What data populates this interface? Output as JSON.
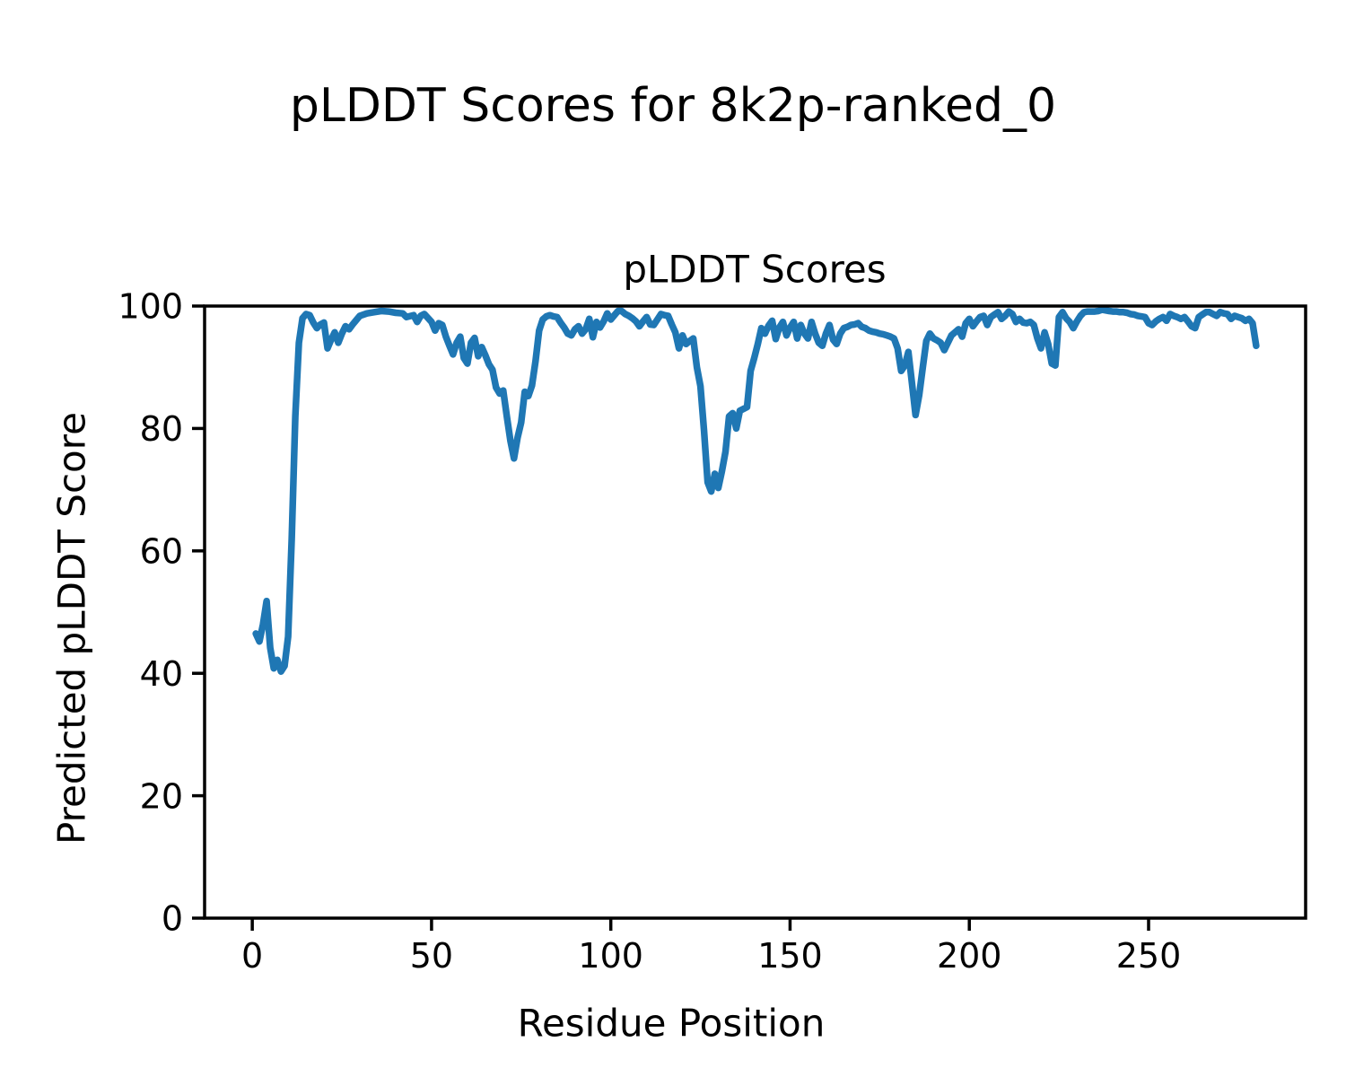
{
  "figure": {
    "suptitle": "pLDDT Scores for 8k2p-ranked_0",
    "axes_title": "pLDDT Scores",
    "xlabel": "Residue Position",
    "ylabel": "Predicted pLDDT Score",
    "background": "#ffffff",
    "text_color": "#000000"
  },
  "chart_data": {
    "type": "line",
    "title": "pLDDT Scores",
    "suptitle": "pLDDT Scores for 8k2p-ranked_0",
    "xlabel": "Residue Position",
    "ylabel": "Predicted pLDDT Score",
    "xlim": [
      -13.3,
      293.8
    ],
    "ylim": [
      0,
      100
    ],
    "x_ticks": [
      0,
      50,
      100,
      150,
      200,
      250
    ],
    "y_ticks": [
      0,
      20,
      40,
      60,
      80,
      100
    ],
    "grid": false,
    "legend": "none",
    "line_color": "#1f77b4",
    "line_width": 7.5,
    "axis_color": "#000000",
    "series": [
      {
        "name": "pLDDT",
        "points": [
          [
            1,
            46.5
          ],
          [
            2,
            45.2
          ],
          [
            3,
            48.0
          ],
          [
            4,
            51.8
          ],
          [
            5,
            44.2
          ],
          [
            6,
            40.8
          ],
          [
            7,
            42.2
          ],
          [
            8,
            40.3
          ],
          [
            9,
            41.2
          ],
          [
            10,
            46.0
          ],
          [
            11,
            62.0
          ],
          [
            12,
            82.0
          ],
          [
            13,
            94.0
          ],
          [
            14,
            98.0
          ],
          [
            15,
            98.7
          ],
          [
            16,
            98.5
          ],
          [
            17,
            97.3
          ],
          [
            18,
            96.4
          ],
          [
            19,
            97.0
          ],
          [
            20,
            97.3
          ],
          [
            21,
            93.1
          ],
          [
            22,
            94.5
          ],
          [
            23,
            95.7
          ],
          [
            24,
            94.0
          ],
          [
            25,
            95.5
          ],
          [
            26,
            96.7
          ],
          [
            27,
            96.2
          ],
          [
            28,
            97.0
          ],
          [
            29,
            97.7
          ],
          [
            30,
            98.4
          ],
          [
            32,
            98.8
          ],
          [
            34,
            99.0
          ],
          [
            36,
            99.2
          ],
          [
            38,
            99.1
          ],
          [
            40,
            98.9
          ],
          [
            42,
            98.8
          ],
          [
            43,
            98.2
          ],
          [
            45,
            98.5
          ],
          [
            46,
            97.4
          ],
          [
            47,
            98.4
          ],
          [
            48,
            98.7
          ],
          [
            50,
            97.4
          ],
          [
            51,
            96.0
          ],
          [
            52,
            97.2
          ],
          [
            53,
            96.9
          ],
          [
            54,
            95.0
          ],
          [
            55,
            93.5
          ],
          [
            56,
            92.1
          ],
          [
            57,
            94.0
          ],
          [
            58,
            95.0
          ],
          [
            59,
            91.5
          ],
          [
            60,
            90.6
          ],
          [
            61,
            94.0
          ],
          [
            62,
            94.8
          ],
          [
            63,
            91.8
          ],
          [
            64,
            93.3
          ],
          [
            65,
            92.0
          ],
          [
            66,
            90.5
          ],
          [
            67,
            89.6
          ],
          [
            68,
            86.7
          ],
          [
            69,
            85.7
          ],
          [
            70,
            86.2
          ],
          [
            71,
            82.0
          ],
          [
            72,
            78.0
          ],
          [
            73,
            75.1
          ],
          [
            74,
            78.5
          ],
          [
            75,
            81.0
          ],
          [
            76,
            86.0
          ],
          [
            77,
            85.3
          ],
          [
            78,
            87.0
          ],
          [
            79,
            91.0
          ],
          [
            80,
            96.0
          ],
          [
            81,
            97.8
          ],
          [
            82,
            98.3
          ],
          [
            83,
            98.5
          ],
          [
            84,
            98.3
          ],
          [
            85,
            98.2
          ],
          [
            86,
            97.3
          ],
          [
            87,
            96.5
          ],
          [
            88,
            95.5
          ],
          [
            89,
            95.2
          ],
          [
            90,
            96.2
          ],
          [
            91,
            96.7
          ],
          [
            92,
            95.5
          ],
          [
            93,
            96.2
          ],
          [
            94,
            97.9
          ],
          [
            95,
            94.9
          ],
          [
            96,
            97.4
          ],
          [
            97,
            96.5
          ],
          [
            98,
            97.5
          ],
          [
            99,
            98.8
          ],
          [
            100,
            97.8
          ],
          [
            101,
            98.5
          ],
          [
            102,
            99.2
          ],
          [
            103,
            99.2
          ],
          [
            104,
            98.7
          ],
          [
            105,
            98.4
          ],
          [
            106,
            98.0
          ],
          [
            107,
            97.5
          ],
          [
            108,
            96.7
          ],
          [
            109,
            97.5
          ],
          [
            110,
            98.2
          ],
          [
            111,
            97.0
          ],
          [
            112,
            96.9
          ],
          [
            113,
            97.8
          ],
          [
            114,
            98.7
          ],
          [
            115,
            98.5
          ],
          [
            116,
            98.4
          ],
          [
            117,
            97.0
          ],
          [
            118,
            95.7
          ],
          [
            119,
            93.1
          ],
          [
            120,
            95.2
          ],
          [
            121,
            93.8
          ],
          [
            122,
            94.3
          ],
          [
            123,
            94.7
          ],
          [
            124,
            90.0
          ],
          [
            125,
            86.9
          ],
          [
            126,
            79.6
          ],
          [
            127,
            71.2
          ],
          [
            128,
            69.7
          ],
          [
            129,
            72.6
          ],
          [
            130,
            70.3
          ],
          [
            131,
            73.0
          ],
          [
            132,
            76.2
          ],
          [
            133,
            82.0
          ],
          [
            134,
            82.5
          ],
          [
            135,
            80.0
          ],
          [
            136,
            82.9
          ],
          [
            137,
            83.2
          ],
          [
            138,
            83.5
          ],
          [
            139,
            89.4
          ],
          [
            140,
            91.5
          ],
          [
            141,
            93.8
          ],
          [
            142,
            96.4
          ],
          [
            143,
            95.5
          ],
          [
            144,
            96.8
          ],
          [
            145,
            97.6
          ],
          [
            146,
            94.6
          ],
          [
            147,
            96.5
          ],
          [
            148,
            97.4
          ],
          [
            149,
            95.2
          ],
          [
            150,
            96.5
          ],
          [
            151,
            97.4
          ],
          [
            152,
            94.7
          ],
          [
            153,
            96.9
          ],
          [
            154,
            95.5
          ],
          [
            155,
            94.7
          ],
          [
            156,
            97.4
          ],
          [
            157,
            95.5
          ],
          [
            158,
            94.0
          ],
          [
            159,
            93.5
          ],
          [
            160,
            95.5
          ],
          [
            161,
            96.9
          ],
          [
            162,
            94.5
          ],
          [
            163,
            93.8
          ],
          [
            164,
            95.5
          ],
          [
            165,
            96.4
          ],
          [
            166,
            96.6
          ],
          [
            167,
            96.9
          ],
          [
            168,
            97.0
          ],
          [
            169,
            97.2
          ],
          [
            170,
            96.6
          ],
          [
            171,
            96.4
          ],
          [
            172,
            96.0
          ],
          [
            173,
            95.8
          ],
          [
            174,
            95.7
          ],
          [
            175,
            95.5
          ],
          [
            176,
            95.4
          ],
          [
            177,
            95.2
          ],
          [
            178,
            95.0
          ],
          [
            179,
            94.7
          ],
          [
            180,
            93.1
          ],
          [
            181,
            89.4
          ],
          [
            182,
            90.3
          ],
          [
            183,
            92.5
          ],
          [
            184,
            87.4
          ],
          [
            185,
            82.2
          ],
          [
            186,
            85.4
          ],
          [
            187,
            89.9
          ],
          [
            188,
            94.3
          ],
          [
            189,
            95.5
          ],
          [
            190,
            94.7
          ],
          [
            191,
            94.4
          ],
          [
            192,
            94.0
          ],
          [
            193,
            92.8
          ],
          [
            194,
            94.0
          ],
          [
            195,
            95.2
          ],
          [
            196,
            95.7
          ],
          [
            197,
            96.2
          ],
          [
            198,
            95.0
          ],
          [
            199,
            97.2
          ],
          [
            200,
            97.9
          ],
          [
            201,
            96.7
          ],
          [
            202,
            97.5
          ],
          [
            203,
            98.2
          ],
          [
            204,
            98.4
          ],
          [
            205,
            96.9
          ],
          [
            206,
            98.2
          ],
          [
            207,
            98.6
          ],
          [
            208,
            99.0
          ],
          [
            209,
            97.9
          ],
          [
            210,
            98.4
          ],
          [
            211,
            99.1
          ],
          [
            212,
            98.7
          ],
          [
            213,
            97.4
          ],
          [
            214,
            97.9
          ],
          [
            215,
            97.3
          ],
          [
            216,
            97.2
          ],
          [
            217,
            97.4
          ],
          [
            218,
            96.9
          ],
          [
            219,
            94.7
          ],
          [
            220,
            93.1
          ],
          [
            221,
            95.7
          ],
          [
            222,
            93.8
          ],
          [
            223,
            90.6
          ],
          [
            224,
            90.3
          ],
          [
            225,
            98.2
          ],
          [
            226,
            99.0
          ],
          [
            227,
            98.0
          ],
          [
            228,
            97.4
          ],
          [
            229,
            96.4
          ],
          [
            230,
            97.5
          ],
          [
            231,
            98.4
          ],
          [
            232,
            99.0
          ],
          [
            233,
            99.1
          ],
          [
            234,
            99.1
          ],
          [
            235,
            99.1
          ],
          [
            236,
            99.2
          ],
          [
            237,
            99.4
          ],
          [
            238,
            99.3
          ],
          [
            239,
            99.2
          ],
          [
            240,
            99.1
          ],
          [
            241,
            99.1
          ],
          [
            242,
            99.0
          ],
          [
            243,
            99.0
          ],
          [
            244,
            98.9
          ],
          [
            245,
            98.7
          ],
          [
            246,
            98.6
          ],
          [
            247,
            98.4
          ],
          [
            248,
            98.3
          ],
          [
            249,
            98.2
          ],
          [
            250,
            97.2
          ],
          [
            251,
            96.9
          ],
          [
            252,
            97.5
          ],
          [
            253,
            97.9
          ],
          [
            254,
            98.2
          ],
          [
            255,
            97.6
          ],
          [
            256,
            98.7
          ],
          [
            257,
            98.4
          ],
          [
            258,
            98.2
          ],
          [
            259,
            97.9
          ],
          [
            260,
            98.2
          ],
          [
            261,
            97.5
          ],
          [
            262,
            96.7
          ],
          [
            263,
            96.4
          ],
          [
            264,
            98.2
          ],
          [
            265,
            98.6
          ],
          [
            266,
            99.0
          ],
          [
            267,
            99.0
          ],
          [
            268,
            98.7
          ],
          [
            269,
            98.4
          ],
          [
            270,
            99.0
          ],
          [
            271,
            98.8
          ],
          [
            272,
            98.7
          ],
          [
            273,
            97.9
          ],
          [
            274,
            98.4
          ],
          [
            275,
            98.2
          ],
          [
            276,
            98.0
          ],
          [
            277,
            97.6
          ],
          [
            278,
            97.9
          ],
          [
            279,
            97.2
          ],
          [
            280,
            93.5
          ]
        ]
      }
    ]
  }
}
